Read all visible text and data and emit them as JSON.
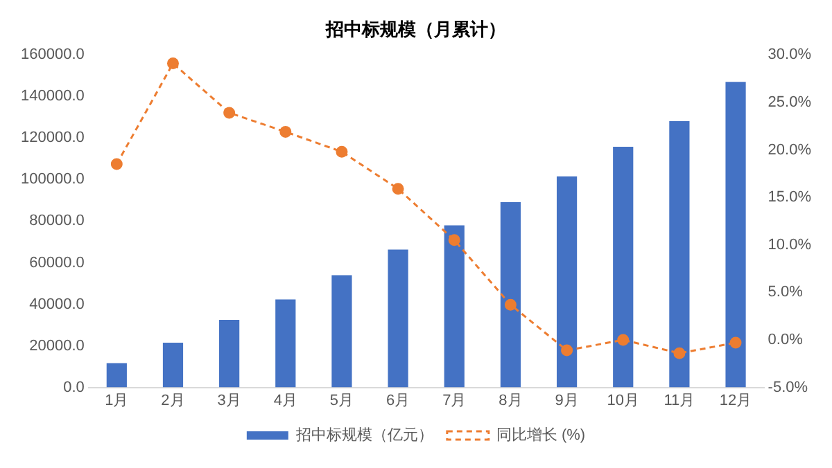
{
  "chart_data": {
    "type": "bar",
    "title": "招中标规模（月累计）",
    "categories": [
      "1月",
      "2月",
      "3月",
      "4月",
      "5月",
      "6月",
      "7月",
      "8月",
      "9月",
      "10月",
      "11月",
      "12月"
    ],
    "series": [
      {
        "name": "招中标规模（亿元）",
        "color": "#4472c4",
        "values": [
          11700,
          21500,
          32500,
          42300,
          54000,
          66300,
          78000,
          89100,
          101500,
          115800,
          128100,
          147000
        ]
      },
      {
        "name": "同比增长 (%)",
        "type": "line",
        "axis": "y2",
        "color": "#ed7d31",
        "marker": "circle",
        "line_style": "dashed",
        "values": [
          18.5,
          29.1,
          23.9,
          21.9,
          19.8,
          15.9,
          10.5,
          3.7,
          -1.1,
          0,
          -1.4,
          -0.3
        ]
      }
    ],
    "ylim": [
      0,
      160000
    ],
    "yticks": [
      {
        "value": 0,
        "label": "0.0"
      },
      {
        "value": 20000,
        "label": "20000.0"
      },
      {
        "value": 40000,
        "label": "40000.0"
      },
      {
        "value": 60000,
        "label": "60000.0"
      },
      {
        "value": 80000,
        "label": "80000.0"
      },
      {
        "value": 100000,
        "label": "100000.0"
      },
      {
        "value": 120000,
        "label": "120000.0"
      },
      {
        "value": 140000,
        "label": "140000.0"
      },
      {
        "value": 160000,
        "label": "160000.0"
      }
    ],
    "y2lim": [
      -5,
      30
    ],
    "y2ticks": [
      {
        "value": -5,
        "label": "-5.0%"
      },
      {
        "value": 0,
        "label": "0.0%"
      },
      {
        "value": 5,
        "label": "5.0%"
      },
      {
        "value": 10,
        "label": "10.0%"
      },
      {
        "value": 15,
        "label": "15.0%"
      },
      {
        "value": 20,
        "label": "20.0%"
      },
      {
        "value": 25,
        "label": "25.0%"
      },
      {
        "value": 30,
        "label": "30.0%"
      }
    ],
    "grid": false,
    "legend": "bottom"
  }
}
